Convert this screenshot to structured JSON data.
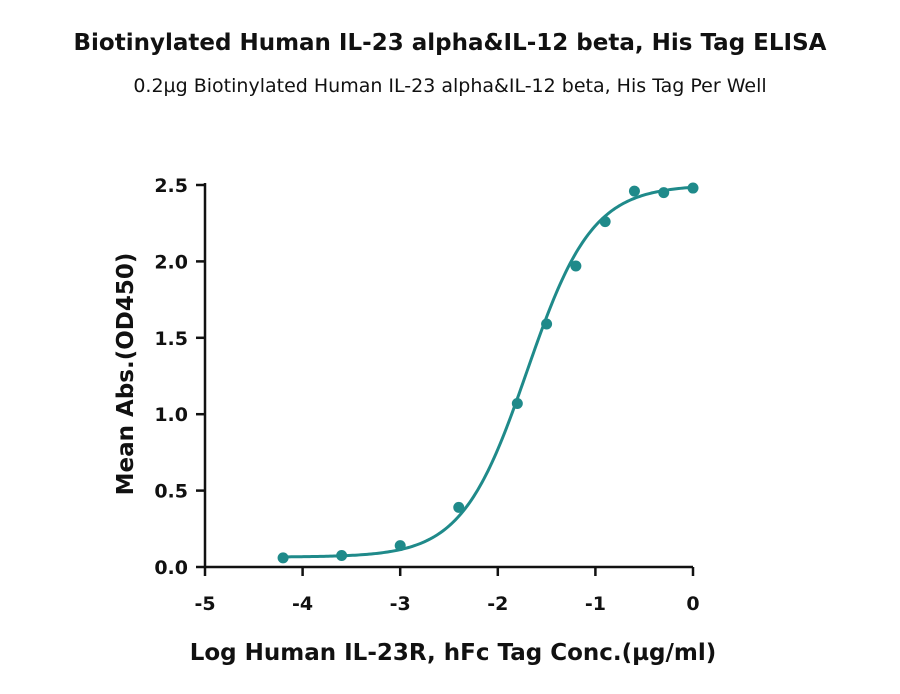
{
  "chart_data": {
    "type": "scatter",
    "title": "Biotinylated Human IL-23 alpha&IL-12 beta, His Tag ELISA",
    "subtitle": "0.2µg Biotinylated Human IL-23 alpha&IL-12 beta, His Tag Per Well",
    "xlabel": "Log Human IL-23R, hFc Tag Conc.(µg/ml)",
    "ylabel": "Mean Abs.(OD450)",
    "xlim": [
      -5,
      0
    ],
    "ylim": [
      0,
      2.5
    ],
    "x_ticks": [
      "-5",
      "-4",
      "-3",
      "-2",
      "-1",
      "0"
    ],
    "y_ticks": [
      "0.0",
      "0.5",
      "1.0",
      "1.5",
      "2.0",
      "2.5"
    ],
    "grid": false,
    "color": "#1f8a8a",
    "series": [
      {
        "points": [
          {
            "x": -4.2,
            "y": 0.06
          },
          {
            "x": -3.6,
            "y": 0.075
          },
          {
            "x": -3.0,
            "y": 0.14
          },
          {
            "x": -2.4,
            "y": 0.39
          },
          {
            "x": -1.8,
            "y": 1.07
          },
          {
            "x": -1.5,
            "y": 1.59
          },
          {
            "x": -1.2,
            "y": 1.97
          },
          {
            "x": -0.9,
            "y": 2.26
          },
          {
            "x": -0.6,
            "y": 2.46
          },
          {
            "x": -0.3,
            "y": 2.45
          },
          {
            "x": 0.0,
            "y": 2.48
          }
        ]
      }
    ],
    "fit_curve": {
      "model": "4PL",
      "bottom": 0.065,
      "top": 2.5,
      "log_ec50": -1.7,
      "hill_slope": 1.3
    }
  }
}
